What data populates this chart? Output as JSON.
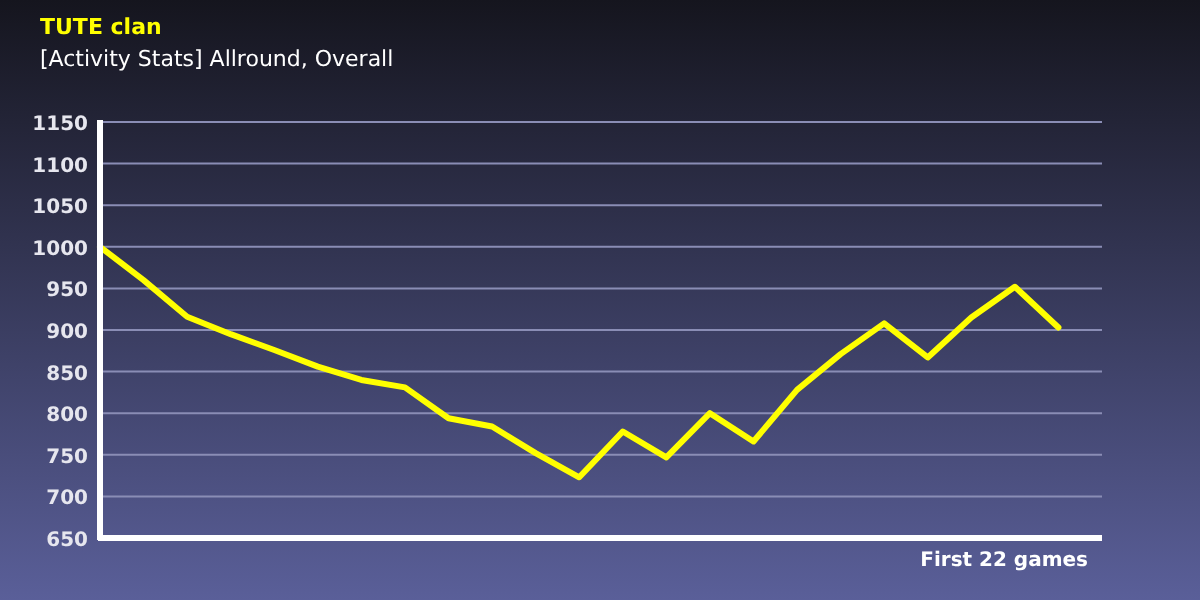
{
  "chart_data": {
    "type": "line",
    "title": "TUTE clan",
    "subtitle": "[Activity Stats] Allround, Overall",
    "xlabel": "First 22 games",
    "categories": [
      null,
      null,
      null,
      null,
      null,
      null,
      null,
      null,
      null,
      null,
      null,
      null,
      null,
      null,
      null,
      null,
      null,
      null,
      null,
      null,
      null,
      null,
      null
    ],
    "series": [
      {
        "color": "#ffff00",
        "values": [
          1000,
          960,
          916,
          895,
          876,
          856,
          840,
          831,
          794,
          784,
          752,
          723,
          778,
          747,
          800,
          766,
          828,
          871,
          908,
          867,
          915,
          952,
          903
        ]
      }
    ],
    "ylim": [
      650,
      1150
    ],
    "yticks": [
      650,
      700,
      750,
      800,
      850,
      900,
      950,
      1000,
      1050,
      1100,
      1150
    ],
    "grid": "y",
    "tick_labels": "y",
    "marker": "none",
    "line_style": "solid"
  }
}
